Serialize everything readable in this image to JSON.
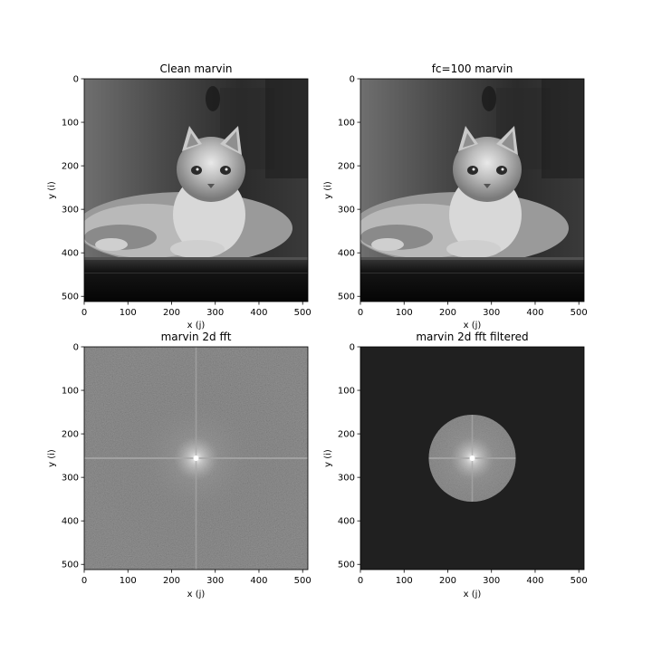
{
  "chart_data": [
    {
      "type": "heatmap",
      "title": "Clean marvin",
      "xlabel": "x (j)",
      "ylabel": "y (i)",
      "xlim": [
        0,
        512
      ],
      "ylim": [
        0,
        512
      ],
      "x_ticks": [
        0,
        100,
        200,
        300,
        400,
        500
      ],
      "y_ticks": [
        0,
        100,
        200,
        300,
        400,
        500
      ],
      "colormap": "gray",
      "content": "grayscale photo of a long-haired cat lying on a dark surface"
    },
    {
      "type": "heatmap",
      "title": "fc=100 marvin",
      "xlabel": "x (j)",
      "ylabel": "y (i)",
      "xlim": [
        0,
        512
      ],
      "ylim": [
        0,
        512
      ],
      "x_ticks": [
        0,
        100,
        200,
        300,
        400,
        500
      ],
      "y_ticks": [
        0,
        100,
        200,
        300,
        400,
        500
      ],
      "colormap": "gray",
      "content": "low-pass filtered cat photo"
    },
    {
      "type": "heatmap",
      "title": "marvin 2d fft",
      "xlabel": "x (j)",
      "ylabel": "y (i)",
      "xlim": [
        0,
        512
      ],
      "ylim": [
        0,
        512
      ],
      "x_ticks": [
        0,
        100,
        200,
        300,
        400,
        500
      ],
      "y_ticks": [
        0,
        100,
        200,
        300,
        400,
        500
      ],
      "colormap": "gray",
      "center": [
        256,
        256
      ],
      "content": "log-magnitude 2D FFT spectrum with bright center and cross"
    },
    {
      "type": "heatmap",
      "title": "marvin 2d fft filtered",
      "xlabel": "x (j)",
      "ylabel": "y (i)",
      "xlim": [
        0,
        512
      ],
      "ylim": [
        0,
        512
      ],
      "x_ticks": [
        0,
        100,
        200,
        300,
        400,
        500
      ],
      "y_ticks": [
        0,
        100,
        200,
        300,
        400,
        500
      ],
      "colormap": "gray",
      "center": [
        256,
        256
      ],
      "cutoff_radius": 100,
      "content": "FFT spectrum masked to a disc of radius 100 around the center"
    }
  ]
}
